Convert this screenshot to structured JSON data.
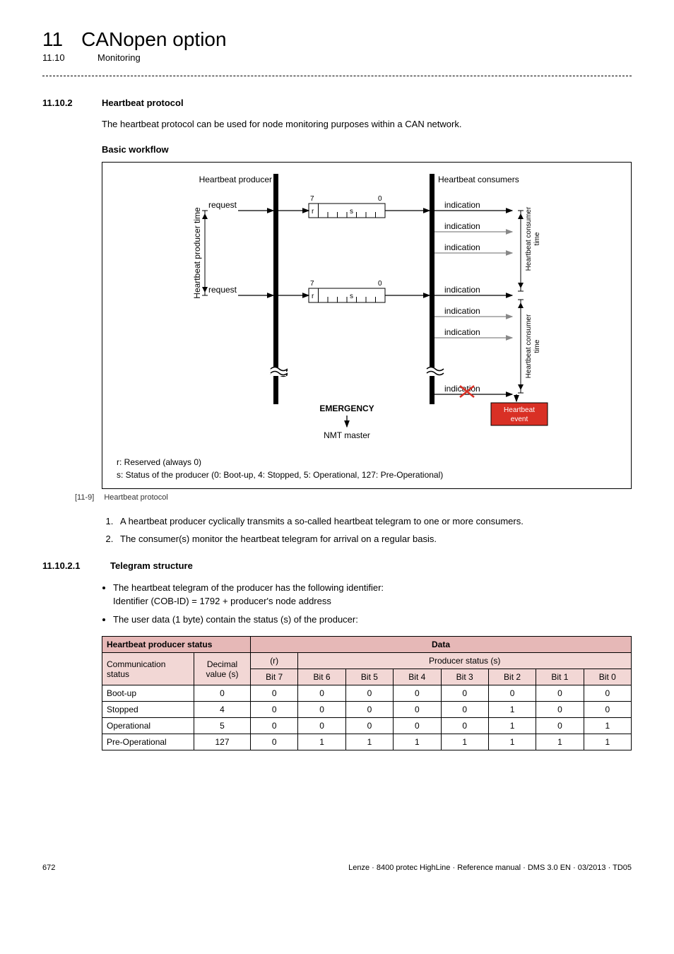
{
  "chapter": {
    "num": "11",
    "title": "CANopen option"
  },
  "section": {
    "num": "11.10",
    "title": "Monitoring"
  },
  "sub1": {
    "num": "11.10.2",
    "title": "Heartbeat protocol"
  },
  "intro": "The heartbeat protocol can be used for node monitoring purposes within a CAN network.",
  "workflow_head": "Basic workflow",
  "figure": {
    "producer_label": "Heartbeat producer",
    "consumers_label": "Heartbeat consumers",
    "request": "request",
    "indication": "indication",
    "producer_time": "Heartbeat producer time",
    "consumer_time": "Heartbeat consumer\ntime",
    "bit7": "7",
    "bit0": "0",
    "r": "r",
    "s": "s",
    "emergency": "EMERGENCY",
    "nmt": "NMT master",
    "hb_event1": "Heartbeat",
    "hb_event2": "event",
    "legend_r": "r: Reserved (always 0)",
    "legend_s": "s: Status of the producer (0: Boot-up, 4: Stopped, 5: Operational, 127: Pre-Operational)",
    "caption_num": "[11-9]",
    "caption_txt": "Heartbeat protocol"
  },
  "list": {
    "i1": "A heartbeat producer cyclically transmits a so-called heartbeat telegram to one or more consumers.",
    "i2": "The consumer(s) monitor the heartbeat telegram for arrival on a regular basis."
  },
  "sub2": {
    "num": "11.10.2.1",
    "title": "Telegram structure"
  },
  "bullets": {
    "b1a": "The heartbeat telegram of the producer has the following identifier:",
    "b1b": "Identifier (COB-ID) = 1792 + producer's node address",
    "b2": "The user data (1 byte) contain the status (s) of the producer:"
  },
  "table": {
    "head_status": "Heartbeat producer status",
    "head_data": "Data",
    "head_comm": "Communication status",
    "head_dec": "Decimal value (s)",
    "head_r": "(r)",
    "head_ps": "Producer status (s)",
    "bits": [
      "Bit 7",
      "Bit 6",
      "Bit 5",
      "Bit 4",
      "Bit 3",
      "Bit 2",
      "Bit 1",
      "Bit 0"
    ],
    "rows": [
      {
        "name": "Boot-up",
        "dec": "0",
        "bits": [
          "0",
          "0",
          "0",
          "0",
          "0",
          "0",
          "0",
          "0"
        ]
      },
      {
        "name": "Stopped",
        "dec": "4",
        "bits": [
          "0",
          "0",
          "0",
          "0",
          "0",
          "1",
          "0",
          "0"
        ]
      },
      {
        "name": "Operational",
        "dec": "5",
        "bits": [
          "0",
          "0",
          "0",
          "0",
          "0",
          "1",
          "0",
          "1"
        ]
      },
      {
        "name": "Pre-Operational",
        "dec": "127",
        "bits": [
          "0",
          "1",
          "1",
          "1",
          "1",
          "1",
          "1",
          "1"
        ]
      }
    ]
  },
  "footer": {
    "page": "672",
    "line": "Lenze · 8400 protec HighLine · Reference manual · DMS 3.0 EN · 03/2013 · TD05"
  },
  "colors": {
    "band1": "#e6b8b7",
    "band2": "#f2d7d5",
    "red_box": "#d93025",
    "red_text": "#ffffff"
  }
}
